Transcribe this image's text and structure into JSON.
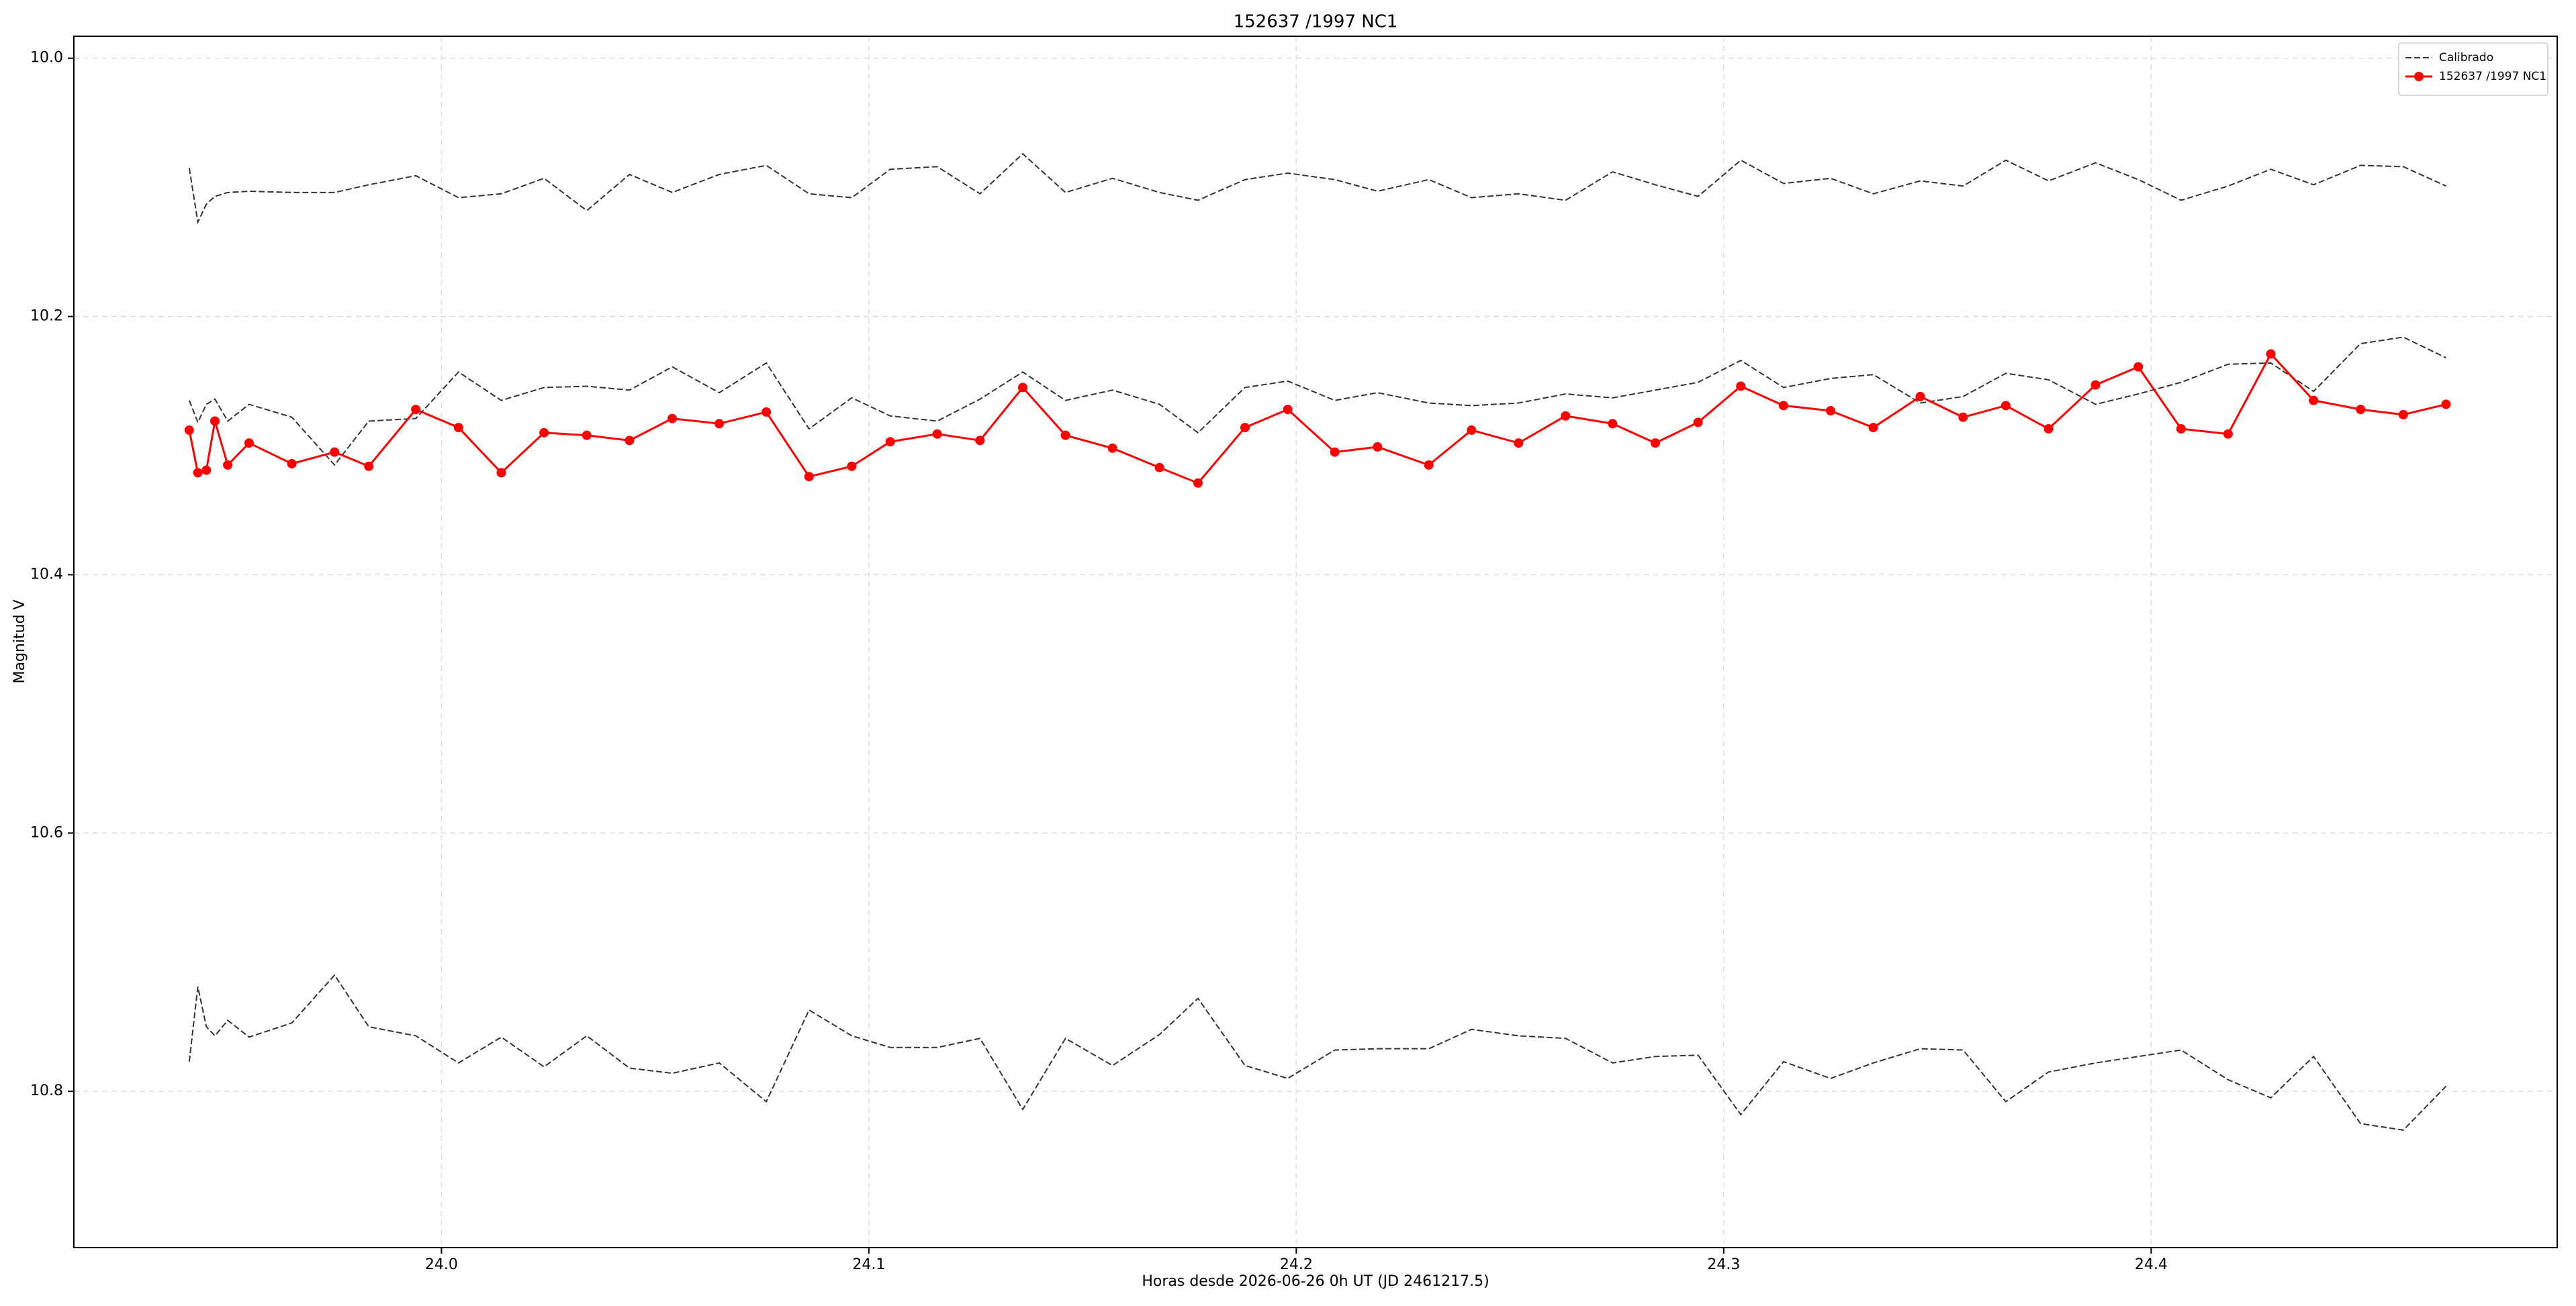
{
  "chart_data": {
    "type": "line",
    "title": "152637 /1997 NC1",
    "x_label": "Horas desde 2026-06-26 0h UT (JD 2461217.5)",
    "y_label": "Magnitud V",
    "x": [
      23.941,
      23.943,
      23.945,
      23.947,
      23.95,
      23.955,
      23.965,
      23.975,
      23.983,
      23.994,
      24.004,
      24.014,
      24.024,
      24.034,
      24.044,
      24.054,
      24.065,
      24.076,
      24.086,
      24.096,
      24.105,
      24.116,
      24.126,
      24.136,
      24.146,
      24.157,
      24.168,
      24.177,
      24.188,
      24.198,
      24.209,
      24.219,
      24.231,
      24.241,
      24.252,
      24.263,
      24.274,
      24.284,
      24.294,
      24.304,
      24.314,
      24.325,
      24.335,
      24.346,
      24.356,
      24.366,
      24.376,
      24.387,
      24.397,
      24.407,
      24.418,
      24.428,
      24.438,
      24.449,
      24.459,
      24.469
    ],
    "series": [
      {
        "name": "Calibrado",
        "color": "#333333",
        "linestyle": "dashed",
        "values": [
          10.085,
          10.127,
          10.113,
          10.107,
          10.104,
          10.103,
          10.104,
          10.104,
          10.098,
          10.091,
          10.108,
          10.105,
          10.093,
          10.118,
          10.09,
          10.104,
          10.09,
          10.083,
          10.105,
          10.108,
          10.086,
          10.084,
          10.105,
          10.074,
          10.104,
          10.093,
          10.104,
          10.11,
          10.094,
          10.089,
          10.094,
          10.103,
          10.094,
          10.108,
          10.105,
          10.11,
          10.088,
          10.098,
          10.107,
          10.079,
          10.097,
          10.093,
          10.105,
          10.095,
          10.099,
          10.079,
          10.095,
          10.081,
          10.094,
          10.11,
          10.099,
          10.086,
          10.098,
          10.083,
          10.084,
          10.099
        ]
      },
      {
        "color": "#333333",
        "linestyle": "dashed",
        "values": [
          10.265,
          10.282,
          10.268,
          10.264,
          10.281,
          10.268,
          10.278,
          10.315,
          10.281,
          10.279,
          10.243,
          10.265,
          10.255,
          10.254,
          10.257,
          10.239,
          10.259,
          10.236,
          10.287,
          10.263,
          10.277,
          10.281,
          10.264,
          10.243,
          10.265,
          10.257,
          10.268,
          10.29,
          10.255,
          10.25,
          10.265,
          10.259,
          10.267,
          10.269,
          10.267,
          10.26,
          10.263,
          10.257,
          10.251,
          10.234,
          10.255,
          10.248,
          10.245,
          10.267,
          10.262,
          10.244,
          10.249,
          10.268,
          10.26,
          10.251,
          10.237,
          10.236,
          10.258,
          10.221,
          10.216,
          10.232
        ]
      },
      {
        "color": "#333333",
        "linestyle": "dashed",
        "values": [
          10.777,
          10.719,
          10.75,
          10.757,
          10.745,
          10.758,
          10.747,
          10.71,
          10.75,
          10.757,
          10.778,
          10.758,
          10.781,
          10.757,
          10.782,
          10.786,
          10.778,
          10.808,
          10.737,
          10.757,
          10.766,
          10.766,
          10.759,
          10.814,
          10.759,
          10.78,
          10.756,
          10.728,
          10.78,
          10.79,
          10.768,
          10.767,
          10.767,
          10.752,
          10.757,
          10.759,
          10.778,
          10.773,
          10.772,
          10.818,
          10.777,
          10.79,
          10.778,
          10.767,
          10.768,
          10.808,
          10.785,
          10.778,
          10.773,
          10.768,
          10.791,
          10.805,
          10.773,
          10.825,
          10.83,
          10.796
        ]
      },
      {
        "name": "152637 /1997 NC1",
        "color": "#ff0000",
        "linestyle": "solid",
        "marker": "o",
        "values": [
          10.288,
          10.321,
          10.319,
          10.281,
          10.315,
          10.298,
          10.314,
          10.305,
          10.316,
          10.272,
          10.286,
          10.321,
          10.29,
          10.292,
          10.296,
          10.279,
          10.283,
          10.274,
          10.324,
          10.316,
          10.297,
          10.291,
          10.296,
          10.255,
          10.292,
          10.302,
          10.317,
          10.329,
          10.286,
          10.272,
          10.305,
          10.301,
          10.315,
          10.288,
          10.298,
          10.277,
          10.283,
          10.298,
          10.282,
          10.254,
          10.269,
          10.273,
          10.286,
          10.262,
          10.278,
          10.269,
          10.287,
          10.253,
          10.239,
          10.287,
          10.291,
          10.229,
          10.265,
          10.272,
          10.276,
          10.268
        ]
      }
    ],
    "xlim": [
      23.914,
      24.495
    ],
    "ylim": [
      9.983,
      10.921
    ],
    "invert_y": true,
    "xticks": [
      {
        "value": 24.0,
        "label": "24.0"
      },
      24.1,
      24.2,
      24.3,
      24.4
    ],
    "yticks": [
      {
        "value": 10.0,
        "label": "10.0"
      },
      10.2,
      10.4,
      10.6,
      10.8
    ],
    "grid": true,
    "legend": "upper right"
  }
}
